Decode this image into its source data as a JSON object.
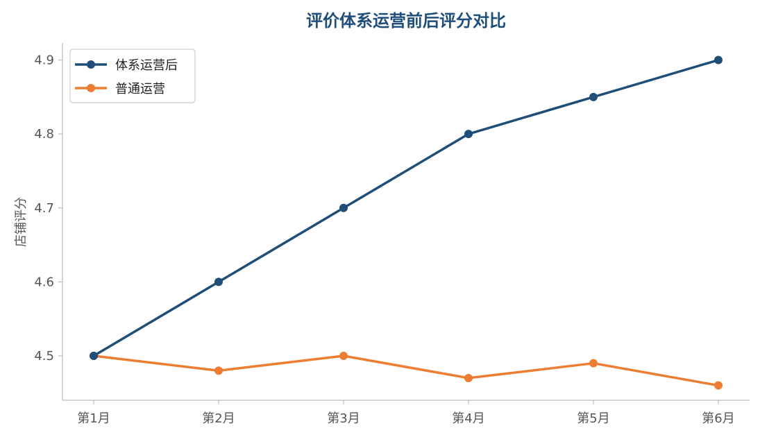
{
  "chart_data": {
    "type": "line",
    "title": "评价体系运营前后评分对比",
    "title_color": "#1f4e79",
    "xlabel": "",
    "ylabel": "店铺评分",
    "categories": [
      "第1月",
      "第2月",
      "第3月",
      "第4月",
      "第5月",
      "第6月"
    ],
    "series": [
      {
        "name": "体系运营后",
        "color": "#1f4e79",
        "values": [
          4.5,
          4.6,
          4.7,
          4.8,
          4.85,
          4.9
        ]
      },
      {
        "name": "普通运营",
        "color": "#ed7d31",
        "values": [
          4.5,
          4.48,
          4.5,
          4.47,
          4.49,
          4.46
        ]
      }
    ],
    "ylim": [
      4.44,
      4.923
    ],
    "yticks": [
      4.5,
      4.6,
      4.7,
      4.8,
      4.9
    ],
    "ytick_labels": [
      "4.5",
      "4.6",
      "4.7",
      "4.8",
      "4.9"
    ],
    "grid": false,
    "legend_position": "top-left"
  }
}
